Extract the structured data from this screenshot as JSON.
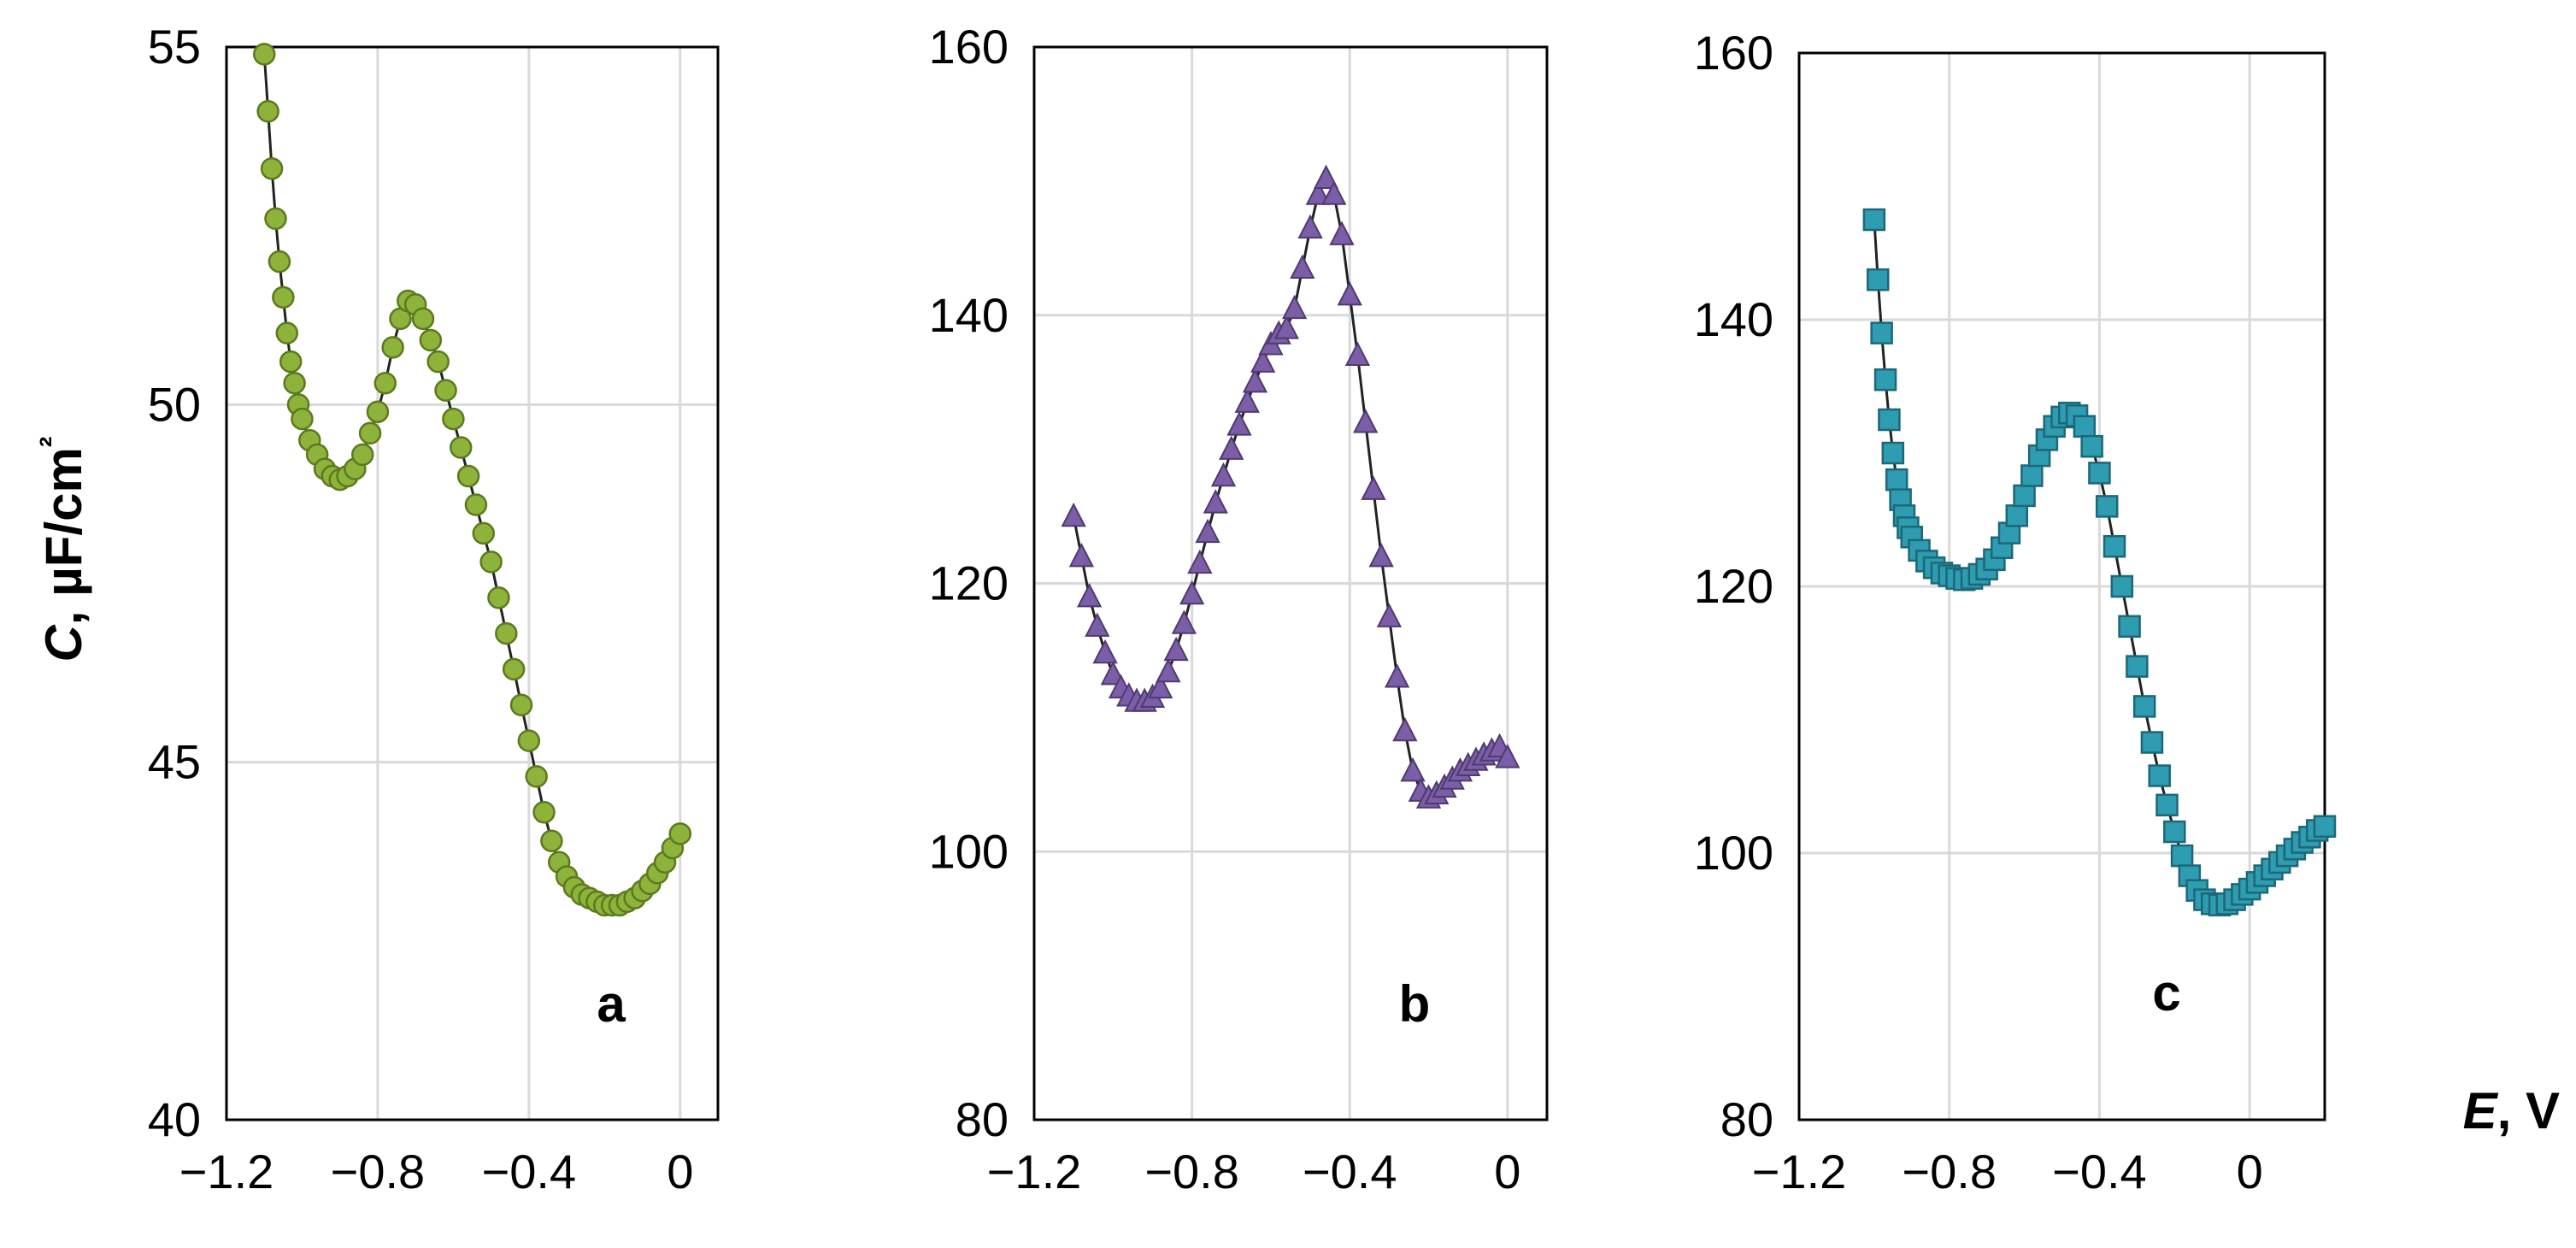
{
  "chart_data": [
    {
      "type": "scatter",
      "panel_label": "a",
      "ylabel": "C, µF/cm²",
      "xlim": [
        -1.2,
        0.1
      ],
      "ylim": [
        40,
        55
      ],
      "xticks": [
        "−1.2",
        "−0.8",
        "−0.4",
        "0"
      ],
      "yticks": [
        "40",
        "45",
        "50",
        "55"
      ],
      "marker": "circle",
      "color": "#8db33b",
      "edge_color": "#5b7a1e",
      "series": [
        {
          "x": [
            -1.1,
            -1.09,
            -1.08,
            -1.07,
            -1.06,
            -1.05,
            -1.04,
            -1.03,
            -1.02,
            -1.01,
            -1.0,
            -0.98,
            -0.96,
            -0.94,
            -0.92,
            -0.9,
            -0.88,
            -0.86,
            -0.84,
            -0.82,
            -0.8,
            -0.78,
            -0.76,
            -0.74,
            -0.72,
            -0.7,
            -0.68,
            -0.66,
            -0.64,
            -0.62,
            -0.6,
            -0.58,
            -0.56,
            -0.54,
            -0.52,
            -0.5,
            -0.48,
            -0.46,
            -0.44,
            -0.42,
            -0.4,
            -0.38,
            -0.36,
            -0.34,
            -0.32,
            -0.3,
            -0.28,
            -0.26,
            -0.24,
            -0.22,
            -0.2,
            -0.18,
            -0.16,
            -0.14,
            -0.12,
            -0.1,
            -0.08,
            -0.06,
            -0.04,
            -0.02,
            0.0
          ],
          "y": [
            54.9,
            54.1,
            53.3,
            52.6,
            52.0,
            51.5,
            51.0,
            50.6,
            50.3,
            50.0,
            49.8,
            49.5,
            49.3,
            49.1,
            49.0,
            48.95,
            49.0,
            49.1,
            49.3,
            49.6,
            49.9,
            50.3,
            50.8,
            51.2,
            51.45,
            51.4,
            51.2,
            50.9,
            50.6,
            50.2,
            49.8,
            49.4,
            49.0,
            48.6,
            48.2,
            47.8,
            47.3,
            46.8,
            46.3,
            45.8,
            45.3,
            44.8,
            44.3,
            43.9,
            43.6,
            43.4,
            43.25,
            43.15,
            43.1,
            43.05,
            43.0,
            43.0,
            43.0,
            43.05,
            43.1,
            43.2,
            43.3,
            43.45,
            43.6,
            43.8,
            44.0
          ]
        }
      ]
    },
    {
      "type": "scatter",
      "panel_label": "b",
      "xlim": [
        -1.2,
        0.1
      ],
      "ylim": [
        80,
        160
      ],
      "xticks": [
        "−1.2",
        "−0.8",
        "−0.4",
        "0"
      ],
      "yticks": [
        "80",
        "100",
        "120",
        "140",
        "160"
      ],
      "marker": "triangle",
      "color": "#7b5ea7",
      "edge_color": "#4e3a70",
      "series": [
        {
          "x": [
            -1.1,
            -1.08,
            -1.06,
            -1.04,
            -1.02,
            -1.0,
            -0.98,
            -0.96,
            -0.94,
            -0.92,
            -0.9,
            -0.88,
            -0.86,
            -0.84,
            -0.82,
            -0.8,
            -0.78,
            -0.76,
            -0.74,
            -0.72,
            -0.7,
            -0.68,
            -0.66,
            -0.64,
            -0.62,
            -0.6,
            -0.58,
            -0.56,
            -0.54,
            -0.52,
            -0.5,
            -0.48,
            -0.46,
            -0.44,
            -0.42,
            -0.4,
            -0.38,
            -0.36,
            -0.34,
            -0.32,
            -0.3,
            -0.28,
            -0.26,
            -0.24,
            -0.22,
            -0.2,
            -0.18,
            -0.16,
            -0.14,
            -0.12,
            -0.1,
            -0.08,
            -0.06,
            -0.04,
            -0.02,
            0.0
          ],
          "y": [
            125.0,
            122.0,
            119.0,
            116.8,
            114.8,
            113.2,
            112.2,
            111.6,
            111.2,
            111.2,
            111.5,
            112.2,
            113.4,
            115.0,
            117.0,
            119.2,
            121.5,
            123.8,
            126.0,
            128.0,
            130.0,
            131.8,
            133.5,
            135.0,
            136.5,
            137.8,
            138.6,
            139.0,
            140.5,
            143.5,
            146.5,
            149.0,
            150.2,
            149.0,
            146.0,
            141.5,
            137.0,
            132.0,
            127.0,
            122.0,
            117.5,
            113.0,
            109.0,
            106.0,
            104.5,
            104.0,
            104.3,
            104.8,
            105.4,
            106.0,
            106.4,
            106.8,
            107.2,
            107.5,
            107.8,
            107.0
          ]
        }
      ]
    },
    {
      "type": "scatter",
      "panel_label": "c",
      "xlabel": "E, V",
      "xlim": [
        -1.2,
        0.2
      ],
      "ylim": [
        80,
        160
      ],
      "xticks": [
        "−1.2",
        "−0.8",
        "−0.4",
        "0"
      ],
      "yticks": [
        "80",
        "100",
        "120",
        "140",
        "160"
      ],
      "marker": "square",
      "color": "#2e9cb1",
      "edge_color": "#1c6878",
      "series": [
        {
          "x": [
            -1.0,
            -0.99,
            -0.98,
            -0.97,
            -0.96,
            -0.95,
            -0.94,
            -0.93,
            -0.92,
            -0.91,
            -0.9,
            -0.88,
            -0.86,
            -0.84,
            -0.82,
            -0.8,
            -0.78,
            -0.76,
            -0.74,
            -0.72,
            -0.7,
            -0.68,
            -0.66,
            -0.64,
            -0.62,
            -0.6,
            -0.58,
            -0.56,
            -0.54,
            -0.52,
            -0.5,
            -0.48,
            -0.46,
            -0.44,
            -0.42,
            -0.4,
            -0.38,
            -0.36,
            -0.34,
            -0.32,
            -0.3,
            -0.28,
            -0.26,
            -0.24,
            -0.22,
            -0.2,
            -0.18,
            -0.16,
            -0.14,
            -0.12,
            -0.1,
            -0.08,
            -0.06,
            -0.04,
            -0.02,
            0.0,
            0.02,
            0.04,
            0.06,
            0.08,
            0.1,
            0.12,
            0.14,
            0.16,
            0.18,
            0.2
          ],
          "y": [
            147.5,
            143.0,
            139.0,
            135.5,
            132.5,
            130.0,
            128.0,
            126.5,
            125.3,
            124.4,
            123.7,
            122.7,
            121.9,
            121.4,
            121.0,
            120.8,
            120.6,
            120.5,
            120.6,
            120.9,
            121.3,
            122.0,
            122.9,
            124.0,
            125.3,
            126.8,
            128.3,
            129.8,
            131.0,
            132.0,
            132.7,
            133.0,
            132.8,
            132.0,
            130.5,
            128.5,
            126.0,
            123.0,
            120.0,
            117.0,
            114.0,
            111.0,
            108.3,
            105.8,
            103.6,
            101.6,
            99.8,
            98.3,
            97.2,
            96.5,
            96.2,
            96.1,
            96.2,
            96.5,
            96.9,
            97.3,
            97.8,
            98.3,
            98.8,
            99.3,
            99.8,
            100.3,
            100.8,
            101.2,
            101.7,
            102.0
          ]
        }
      ]
    }
  ]
}
